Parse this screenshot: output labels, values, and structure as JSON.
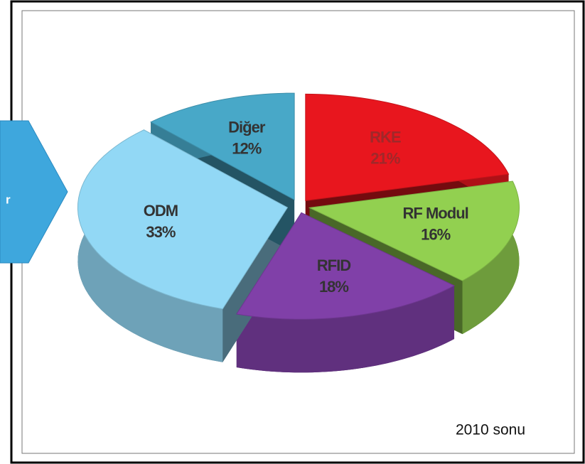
{
  "chart_data": {
    "type": "pie",
    "categories": [
      "RKE",
      "RF Modul",
      "RFID",
      "ODM",
      "Diğer"
    ],
    "values": [
      21,
      16,
      18,
      33,
      12
    ],
    "value_labels": [
      "21%",
      "16%",
      "18%",
      "33%",
      "12%"
    ],
    "colors": [
      "#e8161e",
      "#92d050",
      "#8040a8",
      "#92d8f5",
      "#48a8c8"
    ],
    "annotation": "2010 sonu"
  },
  "arrow_label": "r"
}
